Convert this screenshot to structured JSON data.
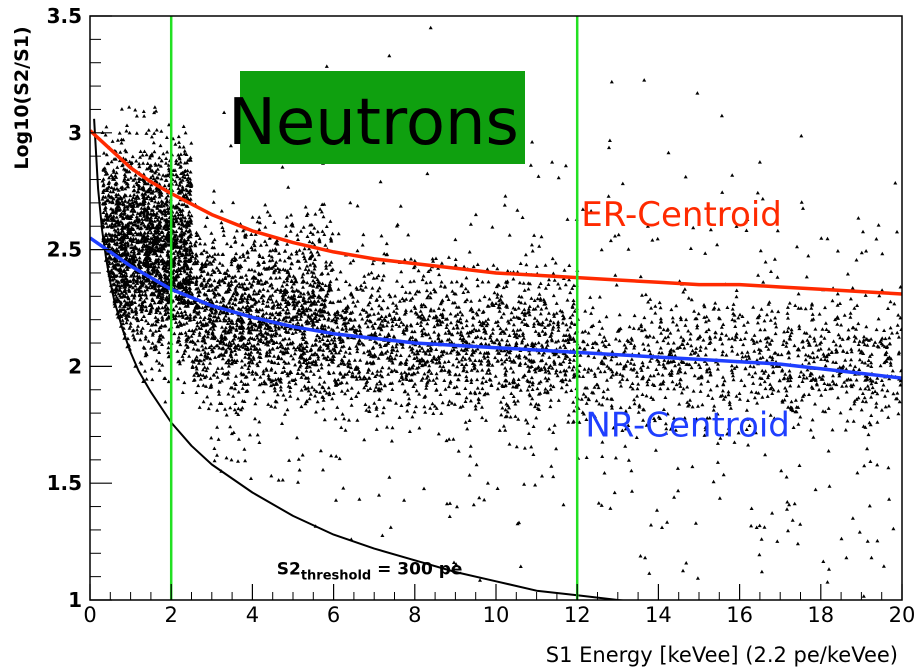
{
  "chart_data": {
    "type": "scatter",
    "title_box": {
      "text": "Neutrons",
      "background": "#0fa00f"
    },
    "xlabel": "S1 Energy [keVee] (2.2 pe/keVee)",
    "ylabel": "Log10(S2/S1)",
    "xlim": [
      0,
      20
    ],
    "ylim": [
      1,
      3.5
    ],
    "x_ticks": [
      0,
      2,
      4,
      6,
      8,
      10,
      12,
      14,
      16,
      18,
      20
    ],
    "x_tick_labels": [
      "0",
      "2",
      "4",
      "6",
      "8",
      "10",
      "12",
      "14",
      "16",
      "18",
      "20"
    ],
    "y_ticks": [
      1,
      1.5,
      2,
      2.5,
      3,
      3.5
    ],
    "y_tick_labels": [
      "1",
      "1.5",
      "2",
      "2.5",
      "3",
      "3.5"
    ],
    "grid": false,
    "colors": {
      "er": "#ff2a00",
      "nr": "#1f3fff",
      "threshold": "#000000",
      "window": "#22e022",
      "points": "#000000"
    },
    "vertical_lines": [
      {
        "x": 2,
        "meaning": "analysis window lower edge"
      },
      {
        "x": 12,
        "meaning": "analysis window upper edge"
      }
    ],
    "series": [
      {
        "name": "ER-Centroid",
        "kind": "line",
        "x": [
          0,
          0.5,
          1,
          1.5,
          2,
          3,
          4,
          5,
          6,
          7,
          8,
          9,
          10,
          11,
          12,
          13,
          14,
          15,
          16,
          17,
          18,
          19,
          20
        ],
        "y": [
          3.01,
          2.93,
          2.85,
          2.79,
          2.74,
          2.65,
          2.58,
          2.53,
          2.49,
          2.46,
          2.44,
          2.42,
          2.4,
          2.39,
          2.38,
          2.37,
          2.36,
          2.35,
          2.35,
          2.34,
          2.33,
          2.32,
          2.31
        ]
      },
      {
        "name": "NR-Centroid",
        "kind": "line",
        "x": [
          0,
          0.5,
          1,
          1.5,
          2,
          3,
          4,
          5,
          6,
          7,
          8,
          9,
          10,
          11,
          12,
          13,
          14,
          15,
          16,
          17,
          18,
          19,
          20
        ],
        "y": [
          2.55,
          2.49,
          2.43,
          2.38,
          2.33,
          2.26,
          2.21,
          2.17,
          2.14,
          2.12,
          2.1,
          2.09,
          2.08,
          2.07,
          2.06,
          2.05,
          2.04,
          2.03,
          2.02,
          2.01,
          1.99,
          1.97,
          1.95
        ]
      },
      {
        "name": "S2 threshold",
        "kind": "line",
        "annotation": {
          "main": "S2",
          "sub": "threshold",
          "rest": " = 300 pe",
          "x": 4.6,
          "y": 1.11
        },
        "x": [
          0.1,
          0.2,
          0.3,
          0.4,
          0.5,
          0.6,
          0.8,
          1.0,
          1.2,
          1.5,
          2.0,
          2.5,
          3.0,
          4.0,
          5.0,
          6.0,
          7.0,
          8.0,
          9.0,
          10.0,
          11.0,
          12.0,
          13.0,
          13.6
        ],
        "y": [
          3.06,
          2.76,
          2.58,
          2.46,
          2.36,
          2.28,
          2.16,
          2.06,
          1.98,
          1.89,
          1.76,
          1.66,
          1.58,
          1.46,
          1.36,
          1.28,
          1.22,
          1.17,
          1.12,
          1.08,
          1.04,
          1.02,
          1.0,
          0.99
        ]
      },
      {
        "name": "neutron events",
        "kind": "scatter",
        "clusters": [
          {
            "x_range": [
              0.3,
              2.5
            ],
            "y_center": 2.5,
            "y_spread": 0.22,
            "count": 2300
          },
          {
            "x_range": [
              2.5,
              6.0
            ],
            "y_center": 2.22,
            "y_spread": 0.18,
            "count": 1600
          },
          {
            "x_range": [
              6.0,
              12.0
            ],
            "y_center": 2.1,
            "y_spread": 0.16,
            "count": 1400
          },
          {
            "x_range": [
              12.0,
              20.0
            ],
            "y_center": 2.02,
            "y_spread": 0.14,
            "count": 900
          },
          {
            "x_range": [
              0.5,
              20.0
            ],
            "y_center": 1.7,
            "y_spread": 0.4,
            "count": 450
          },
          {
            "x_range": [
              1.0,
              20.0
            ],
            "y_center": 2.6,
            "y_spread": 0.35,
            "count": 220
          }
        ]
      }
    ],
    "annotations": [
      {
        "text": "ER-Centroid",
        "x": 12.1,
        "y": 2.6,
        "color": "#ff2a00"
      },
      {
        "text": "NR-Centroid",
        "x": 12.2,
        "y": 1.7,
        "color": "#1f3fff"
      }
    ]
  }
}
